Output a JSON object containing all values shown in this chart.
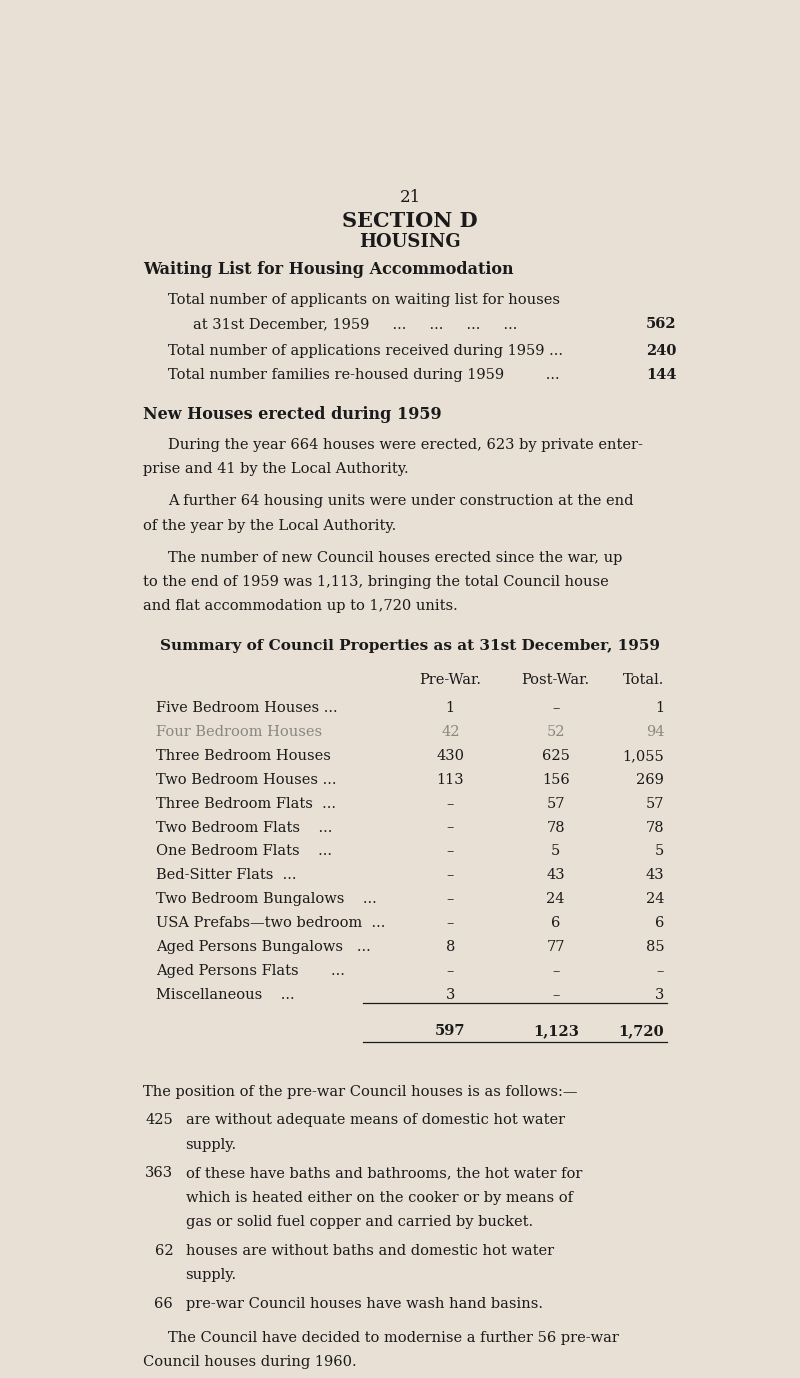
{
  "page_number": "21",
  "bg_color": "#e8e0d5",
  "text_color": "#1a1a1a",
  "section_title": "SECTION D",
  "section_subtitle": "HOUSING",
  "waiting_list_heading": "Waiting List for Housing Accommodation",
  "new_houses_heading": "New Houses erected during 1959",
  "summary_heading": "Summary of Council Properties as at 31st December, 1959",
  "table_col_headers": [
    "Pre-War.",
    "Post-War.",
    "Total."
  ],
  "table_rows": [
    {
      "label": "Five Bedroom Houses ...",
      "pre": "1",
      "post": "–",
      "total": "1",
      "faded": false
    },
    {
      "label": "Four Bedroom Houses",
      "pre": "42",
      "post": "52",
      "total": "94",
      "faded": true
    },
    {
      "label": "Three Bedroom Houses",
      "pre": "430",
      "post": "625",
      "total": "1,055",
      "faded": false
    },
    {
      "label": "Two Bedroom Houses ...",
      "pre": "113",
      "post": "156",
      "total": "269",
      "faded": false
    },
    {
      "label": "Three Bedroom Flats  ...",
      "pre": "–",
      "post": "57",
      "total": "57",
      "faded": false
    },
    {
      "label": "Two Bedroom Flats    ...",
      "pre": "–",
      "post": "78",
      "total": "78",
      "faded": false
    },
    {
      "label": "One Bedroom Flats    ...",
      "pre": "–",
      "post": "5",
      "total": "5",
      "faded": false
    },
    {
      "label": "Bed-Sitter Flats  ...",
      "pre": "–",
      "post": "43",
      "total": "43",
      "faded": false
    },
    {
      "label": "Two Bedroom Bungalows    ...",
      "pre": "–",
      "post": "24",
      "total": "24",
      "faded": false
    },
    {
      "label": "USA Prefabs—two bedroom  ...",
      "pre": "–",
      "post": "6",
      "total": "6",
      "faded": false
    },
    {
      "label": "Aged Persons Bungalows   ...",
      "pre": "8",
      "post": "77",
      "total": "85",
      "faded": false
    },
    {
      "label": "Aged Persons Flats       ...",
      "pre": "–",
      "post": "–",
      "total": "–",
      "faded": false
    },
    {
      "label": "Miscellaneous    ...",
      "pre": "3",
      "post": "–",
      "total": "3",
      "faded": false
    }
  ],
  "table_totals": [
    "597",
    "1,123",
    "1,720"
  ],
  "footer_intro": "The position of the pre-war Council houses is as follows:—",
  "footer_closing_line1": "The Council have decided to modernise a further 56 pre-war",
  "footer_closing_line2": "Council houses during 1960.",
  "faded_color": "#888880",
  "line_color": "#1a1a1a"
}
